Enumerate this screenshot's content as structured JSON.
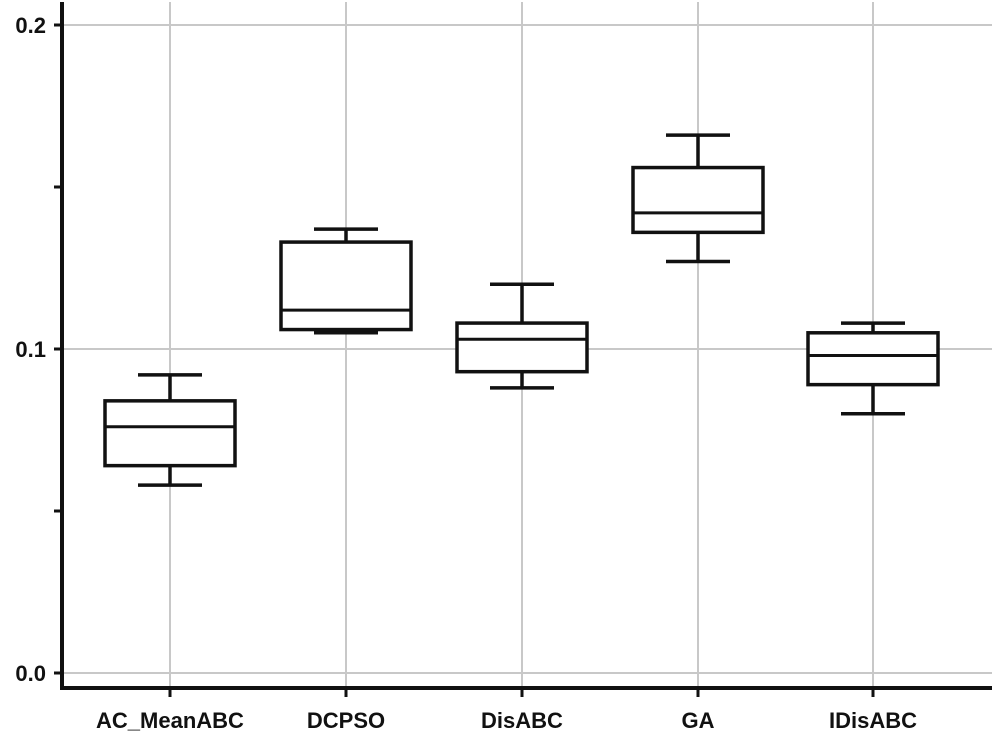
{
  "chart_data": {
    "type": "box",
    "title": "",
    "xlabel": "",
    "ylabel": "",
    "ylim": [
      0.0,
      0.2
    ],
    "y_ticks_labeled": [
      "0.0",
      "0.1",
      "0.2"
    ],
    "y_ticks_minor": [
      0.05,
      0.15
    ],
    "grid": true,
    "categories": [
      "AC_MeanABC",
      "DCPSO",
      "DisABC",
      "GA",
      "IDisABC"
    ],
    "boxes": [
      {
        "name": "AC_MeanABC",
        "min": 0.058,
        "q1": 0.064,
        "median": 0.076,
        "q3": 0.084,
        "max": 0.092
      },
      {
        "name": "DCPSO",
        "min": 0.105,
        "q1": 0.106,
        "median": 0.112,
        "q3": 0.133,
        "max": 0.137
      },
      {
        "name": "DisABC",
        "min": 0.088,
        "q1": 0.093,
        "median": 0.103,
        "q3": 0.108,
        "max": 0.12
      },
      {
        "name": "GA",
        "min": 0.127,
        "q1": 0.136,
        "median": 0.142,
        "q3": 0.156,
        "max": 0.166
      },
      {
        "name": "IDisABC",
        "min": 0.08,
        "q1": 0.089,
        "median": 0.098,
        "q3": 0.105,
        "max": 0.108
      }
    ]
  }
}
